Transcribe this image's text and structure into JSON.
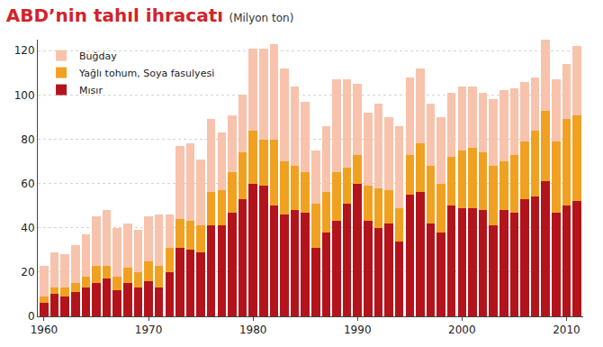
{
  "chart_data": {
    "type": "bar",
    "title": "ABD’nin tahıl ihracatı",
    "subtitle": "(Milyon ton)",
    "stacked": true,
    "grid": true,
    "legend": "upper left",
    "x": [
      1960,
      1961,
      1962,
      1963,
      1964,
      1965,
      1966,
      1967,
      1968,
      1969,
      1970,
      1971,
      1972,
      1973,
      1974,
      1975,
      1976,
      1977,
      1978,
      1979,
      1980,
      1981,
      1982,
      1983,
      1984,
      1985,
      1986,
      1987,
      1988,
      1989,
      1990,
      1991,
      1992,
      1993,
      1994,
      1995,
      1996,
      1997,
      1998,
      1999,
      2000,
      2001,
      2002,
      2003,
      2004,
      2005,
      2006,
      2007,
      2008,
      2009,
      2010,
      2011
    ],
    "xlim": [
      1959.4,
      2011.6
    ],
    "xticks": [
      1960,
      1970,
      1980,
      1990,
      2000,
      2010
    ],
    "ylim": [
      0,
      125
    ],
    "yticks": [
      0,
      20,
      40,
      60,
      80,
      100,
      120
    ],
    "series": [
      {
        "name": "Mısır",
        "color": "#b3141c",
        "values": [
          6,
          10,
          9,
          11,
          13,
          15,
          17,
          12,
          15,
          13,
          16,
          13,
          20,
          31,
          30,
          29,
          41,
          41,
          47,
          53,
          60,
          59,
          50,
          46,
          48,
          47,
          31,
          38,
          43,
          51,
          60,
          43,
          40,
          42,
          34,
          55,
          56,
          42,
          38,
          50,
          49,
          49,
          48,
          41,
          48,
          47,
          53,
          54,
          61,
          47,
          50,
          52
        ]
      },
      {
        "name": "Yağlı tohum, Soya fasulyesi",
        "color": "#f0a122",
        "values": [
          3,
          3,
          4,
          4,
          5,
          8,
          6,
          6,
          7,
          7,
          9,
          10,
          11,
          13,
          13,
          12,
          15,
          16,
          18,
          21,
          24,
          21,
          30,
          24,
          20,
          18,
          20,
          18,
          22,
          16,
          13,
          16,
          18,
          15,
          15,
          18,
          22,
          26,
          22,
          22,
          26,
          27,
          26,
          27,
          22,
          26,
          26,
          30,
          32,
          32,
          39,
          39
        ]
      },
      {
        "name": "Buğday",
        "color": "#f8c3ac",
        "values": [
          14,
          16,
          15,
          17,
          19,
          22,
          25,
          22,
          20,
          19,
          20,
          23,
          15,
          33,
          35,
          30,
          33,
          26,
          26,
          26,
          37,
          41,
          43,
          42,
          36,
          32,
          24,
          30,
          42,
          40,
          32,
          33,
          38,
          33,
          37,
          35,
          34,
          28,
          30,
          29,
          29,
          28,
          27,
          30,
          32,
          30,
          27,
          24,
          32,
          28,
          25,
          31
        ]
      }
    ]
  }
}
